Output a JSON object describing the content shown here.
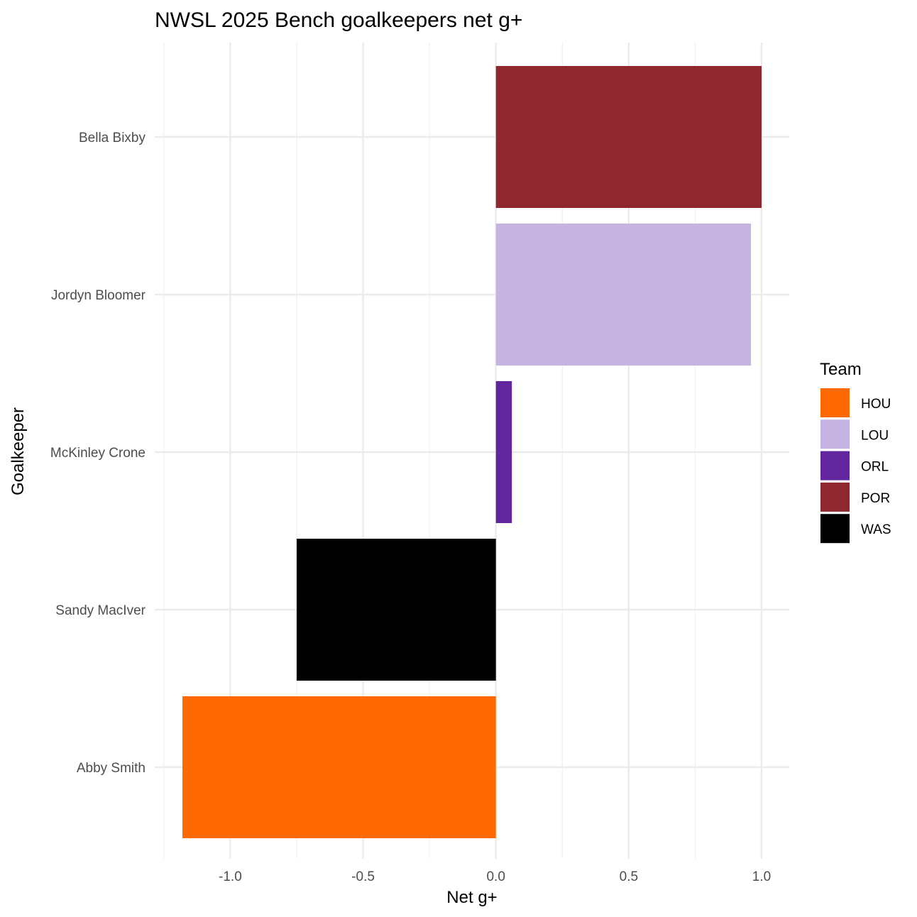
{
  "chart_data": {
    "type": "bar",
    "orientation": "horizontal",
    "title": "NWSL 2025 Bench goalkeepers net g+",
    "xlabel": "Net g+",
    "ylabel": "Goalkeeper",
    "xlim": [
      -1.25,
      1.11
    ],
    "x_ticks": [
      -1.0,
      -0.5,
      0.0,
      0.5,
      1.0
    ],
    "x_tick_labels": [
      "-1.0",
      "-0.5",
      "0.0",
      "0.5",
      "1.0"
    ],
    "grid": true,
    "categories": [
      "Bella Bixby",
      "Jordyn Bloomer",
      "McKinley Crone",
      "Sandy MacIver",
      "Abby Smith"
    ],
    "values": [
      1.0,
      0.96,
      0.06,
      -0.75,
      -1.18
    ],
    "teams": [
      "POR",
      "LOU",
      "ORL",
      "WAS",
      "HOU"
    ],
    "legend": {
      "title": "Team",
      "position": "right",
      "items": [
        {
          "label": "HOU",
          "color": "#FF6A00"
        },
        {
          "label": "LOU",
          "color": "#C5B3E1"
        },
        {
          "label": "ORL",
          "color": "#61259E"
        },
        {
          "label": "POR",
          "color": "#8F272E"
        },
        {
          "label": "WAS",
          "color": "#000000"
        }
      ]
    }
  }
}
